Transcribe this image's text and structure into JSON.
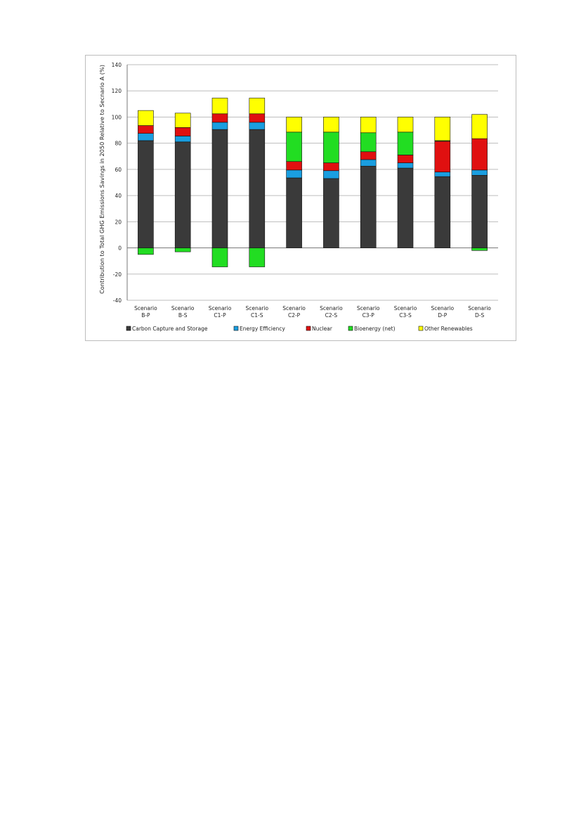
{
  "chart_data": {
    "type": "bar",
    "stacked": true,
    "ylabel": "Contribution to Total GHG Emissions Savings in 2050 Relative to Secnario A (%)",
    "ylim": [
      -40,
      140
    ],
    "yticks": [
      -40,
      -20,
      0,
      20,
      40,
      60,
      80,
      100,
      120,
      140
    ],
    "grid": true,
    "legend_position": "bottom",
    "categories": [
      [
        "Scenario",
        "B-P"
      ],
      [
        "Scenario",
        "B-S"
      ],
      [
        "Scenario",
        "C1-P"
      ],
      [
        "Scenario",
        "C1-S"
      ],
      [
        "Scenario",
        "C2-P"
      ],
      [
        "Scenario",
        "C2-S"
      ],
      [
        "Scenario",
        "C3-P"
      ],
      [
        "Scenario",
        "C3-S"
      ],
      [
        "Scenario",
        "D-P"
      ],
      [
        "Scenario",
        "D-S"
      ]
    ],
    "series": [
      {
        "name": "Carbon Capture and Storage",
        "color": "#3a3a3a",
        "values": [
          82,
          81,
          90.5,
          90.5,
          53.5,
          53,
          62.5,
          61,
          54.5,
          55.5
        ]
      },
      {
        "name": "Energy Efficiency",
        "color": "#1a9ee0",
        "values": [
          5.5,
          4.5,
          5.5,
          5.5,
          6,
          6,
          5,
          4,
          3.5,
          4
        ]
      },
      {
        "name": "Nuclear",
        "color": "#e01010",
        "values": [
          6,
          6.5,
          6.5,
          6.5,
          6.5,
          6,
          6,
          6,
          23.5,
          24
        ]
      },
      {
        "name": "Bioenergy (net)",
        "color": "#22dd22",
        "values": [
          -5,
          -3,
          -14.5,
          -14.5,
          22.5,
          23.5,
          14.5,
          17.5,
          0.5,
          -2
        ]
      },
      {
        "name": "Other Renewables",
        "color": "#ffff00",
        "values": [
          11.5,
          11,
          12,
          12,
          11.5,
          11.5,
          12,
          11.5,
          18,
          18.5
        ]
      }
    ]
  }
}
